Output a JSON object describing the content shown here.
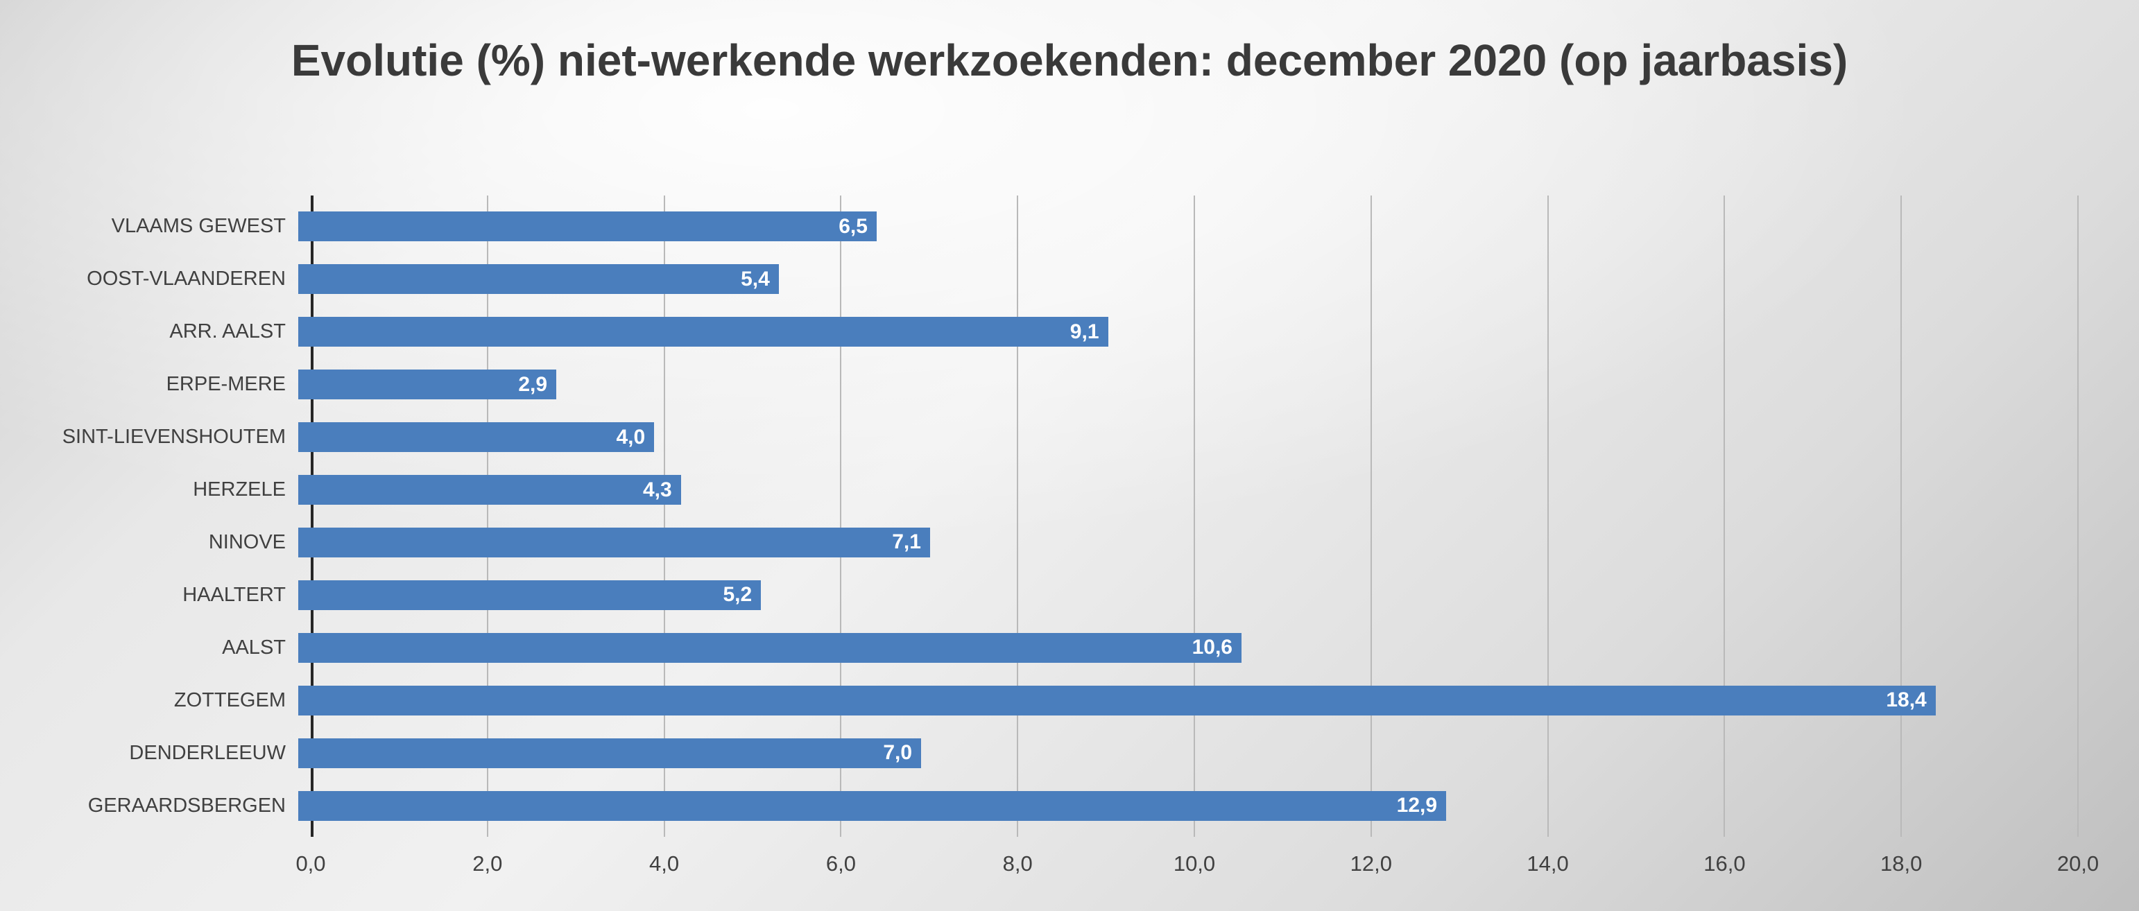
{
  "chart_data": {
    "type": "bar",
    "orientation": "horizontal",
    "title": "Evolutie (%) niet-werkende werkzoekenden: december 2020 (op jaarbasis)",
    "categories": [
      "VLAAMS GEWEST",
      "OOST-VLAANDEREN",
      "ARR. AALST",
      "ERPE-MERE",
      "SINT-LIEVENSHOUTEM",
      "HERZELE",
      "NINOVE",
      "HAALTERT",
      "AALST",
      "ZOTTEGEM",
      "DENDERLEEUW",
      "GERAARDSBERGEN"
    ],
    "values": [
      6.5,
      5.4,
      9.1,
      2.9,
      4.0,
      4.3,
      7.1,
      5.2,
      10.6,
      18.4,
      7.0,
      12.9
    ],
    "value_labels": [
      "6,5",
      "5,4",
      "9,1",
      "2,9",
      "4,0",
      "4,3",
      "7,1",
      "5,2",
      "10,6",
      "18,4",
      "7,0",
      "12,9"
    ],
    "xlabel": "",
    "ylabel": "",
    "xlim": [
      0,
      20
    ],
    "x_ticks": [
      0,
      2,
      4,
      6,
      8,
      10,
      12,
      14,
      16,
      18,
      20
    ],
    "x_tick_labels": [
      "0,0",
      "2,0",
      "4,0",
      "6,0",
      "8,0",
      "10,0",
      "12,0",
      "14,0",
      "16,0",
      "18,0",
      "20,0"
    ],
    "grid": true,
    "legend": "none",
    "colors": {
      "bar": "#4a7ebd",
      "value_label": "#ffffff",
      "axis_line": "#262626",
      "gridline": "#b9b9b9",
      "tick_text": "#404040",
      "category_text": "#404040",
      "title_text": "#3a3a3a"
    }
  }
}
